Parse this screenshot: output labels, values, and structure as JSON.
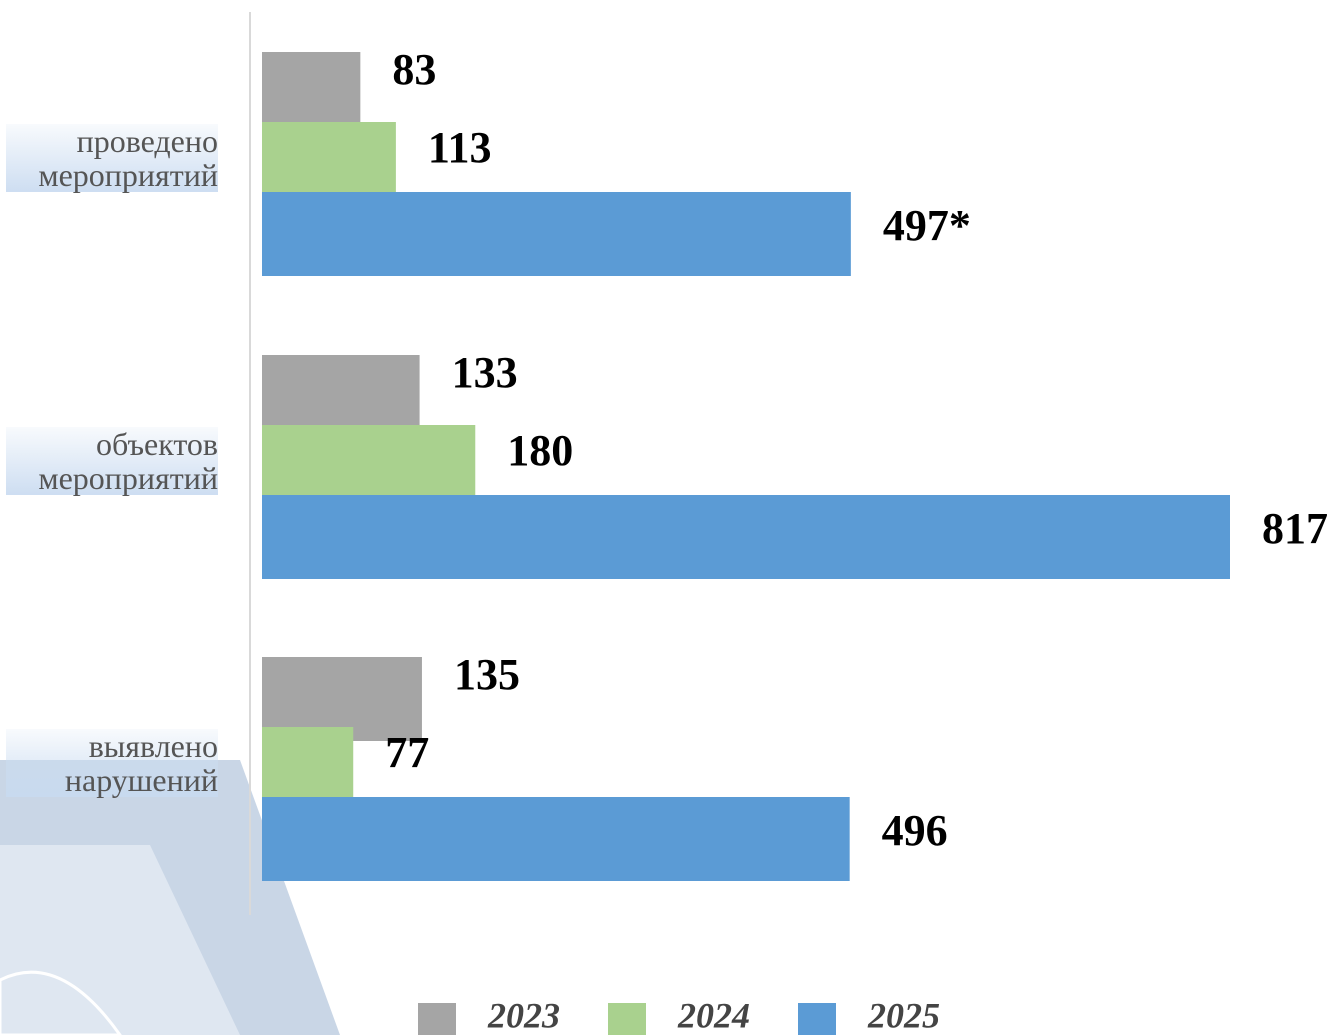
{
  "chart_data": {
    "type": "bar",
    "orientation": "horizontal",
    "categories": [
      "проведено мероприятий",
      "объектов мероприятий",
      "выявлено нарушений"
    ],
    "series": [
      {
        "name": "2023",
        "color": "#a5a5a5",
        "values": [
          83,
          133,
          135
        ]
      },
      {
        "name": "2024",
        "color": "#a9d18e",
        "values": [
          113,
          180,
          77
        ]
      },
      {
        "name": "2025",
        "color": "#5b9bd5",
        "values": [
          497,
          817,
          496
        ],
        "value_labels": [
          "497*",
          "817",
          "496"
        ]
      }
    ],
    "legend": "bottom"
  }
}
